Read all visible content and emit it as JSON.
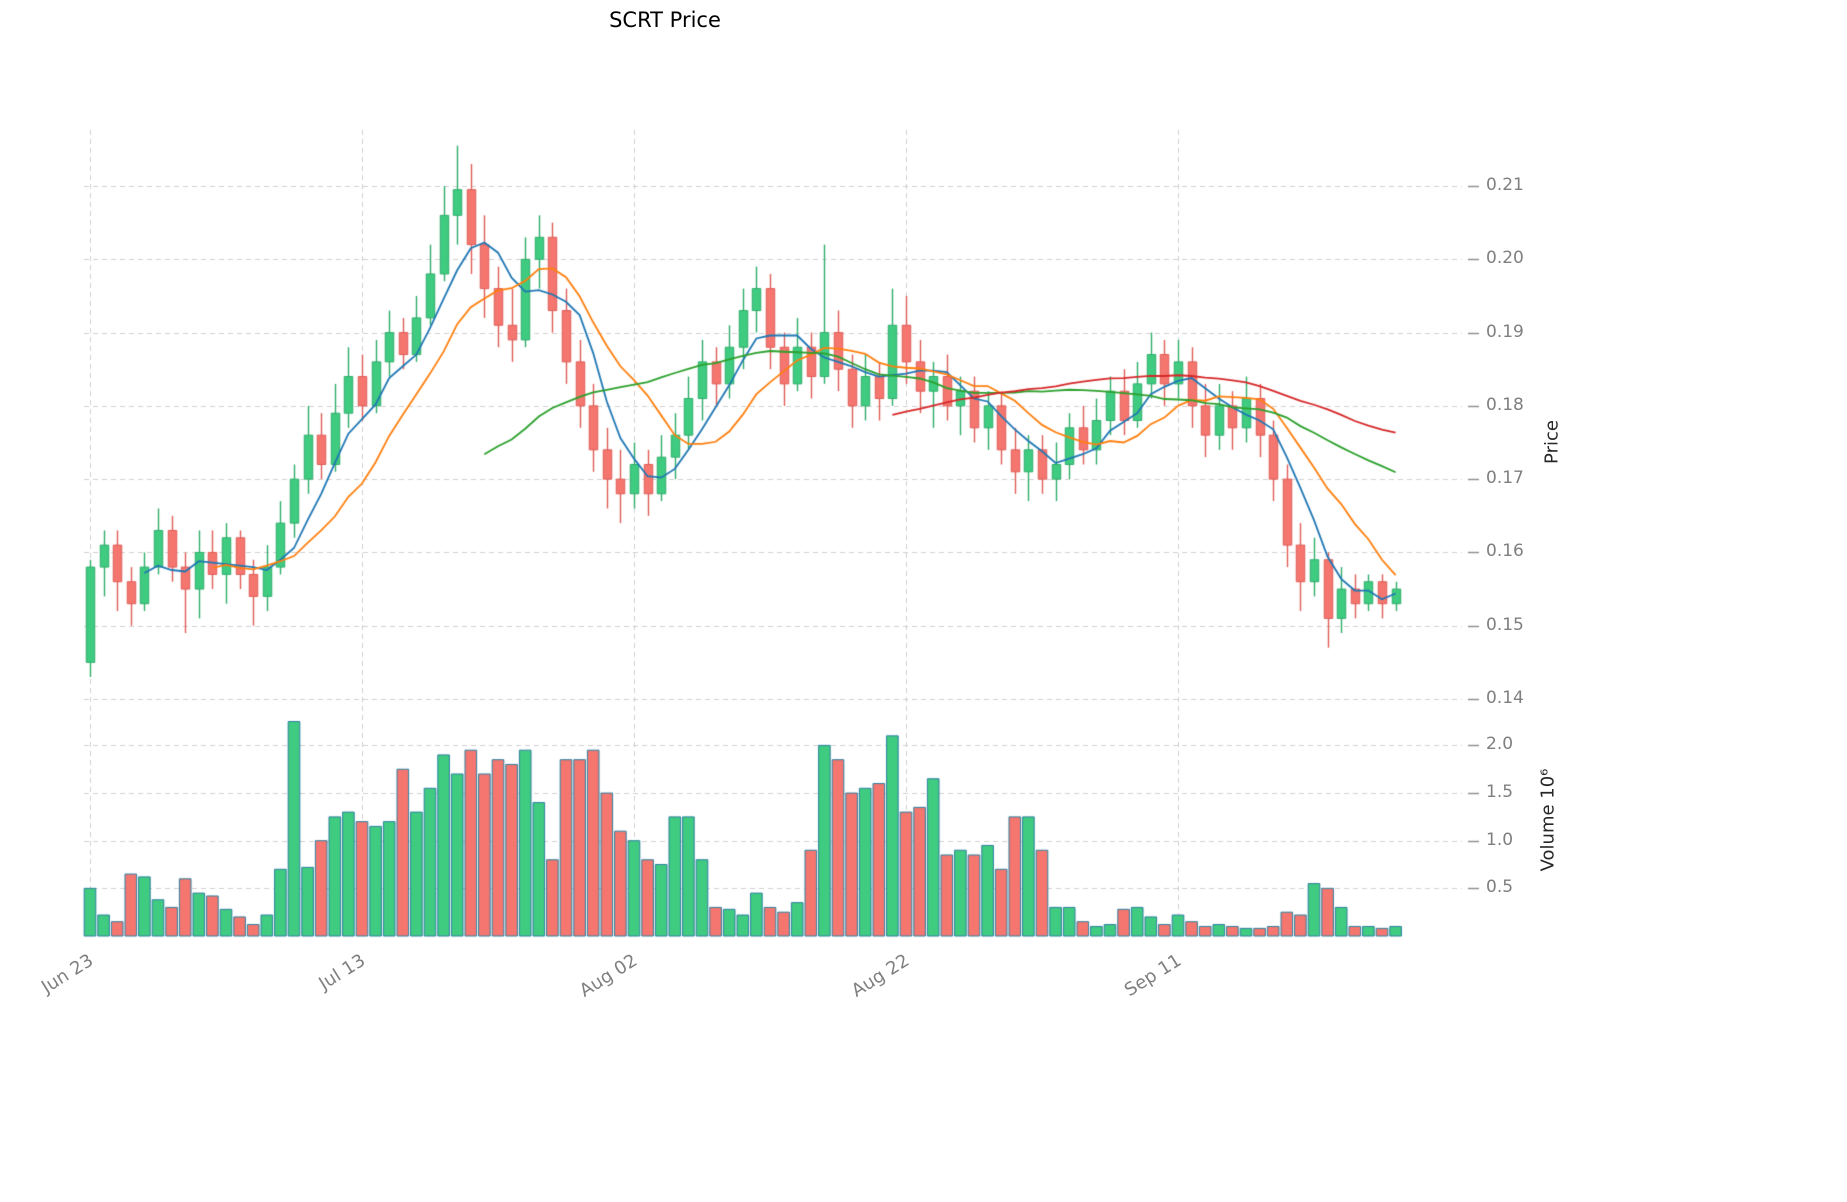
{
  "chart_data": {
    "type": "candlestick",
    "symbol": "SCRT",
    "title": "SCRT Price",
    "ylabel": "Price",
    "ylabel_volume": "Volume  10⁶",
    "grid": "dashed",
    "legend": "none",
    "price_axis_range": [
      0.14,
      0.21
    ],
    "volume_axis_range_millions": [
      0,
      2.25
    ],
    "price_ticks": [
      {
        "v": 0.14,
        "label": "0.14"
      },
      {
        "v": 0.15,
        "label": "0.15"
      },
      {
        "v": 0.16,
        "label": "0.16"
      },
      {
        "v": 0.17,
        "label": "0.17"
      },
      {
        "v": 0.18,
        "label": "0.18"
      },
      {
        "v": 0.19,
        "label": "0.19"
      },
      {
        "v": 0.2,
        "label": "0.20"
      },
      {
        "v": 0.21,
        "label": "0.21"
      }
    ],
    "volume_ticks_millions": [
      {
        "v": 0.5,
        "label": "0.5"
      },
      {
        "v": 1.0,
        "label": "1.0"
      },
      {
        "v": 1.5,
        "label": "1.5"
      },
      {
        "v": 2.0,
        "label": "2.0"
      }
    ],
    "x_tick_labels": [
      {
        "index": 0,
        "label": "Jun 23"
      },
      {
        "index": 20,
        "label": "Jul 13"
      },
      {
        "index": 40,
        "label": "Aug 02"
      },
      {
        "index": 60,
        "label": "Aug 22"
      },
      {
        "index": 80,
        "label": "Sep 11"
      }
    ],
    "moving_averages": [
      {
        "period": 5,
        "color": "#1f77b4"
      },
      {
        "period": 10,
        "color": "#ff7f0e"
      },
      {
        "period": 30,
        "color": "#2ca02c"
      },
      {
        "period": 60,
        "color": "#d62728"
      }
    ],
    "columns": [
      "open",
      "high",
      "low",
      "close",
      "volume_millions"
    ],
    "candles": [
      [
        0.145,
        0.159,
        0.143,
        0.158,
        0.5
      ],
      [
        0.158,
        0.163,
        0.154,
        0.161,
        0.22
      ],
      [
        0.161,
        0.163,
        0.152,
        0.156,
        0.15
      ],
      [
        0.156,
        0.158,
        0.15,
        0.153,
        0.65
      ],
      [
        0.153,
        0.16,
        0.152,
        0.158,
        0.62
      ],
      [
        0.158,
        0.166,
        0.157,
        0.163,
        0.38
      ],
      [
        0.163,
        0.165,
        0.156,
        0.158,
        0.3
      ],
      [
        0.158,
        0.16,
        0.149,
        0.155,
        0.6
      ],
      [
        0.155,
        0.163,
        0.151,
        0.16,
        0.45
      ],
      [
        0.16,
        0.163,
        0.155,
        0.157,
        0.42
      ],
      [
        0.157,
        0.164,
        0.153,
        0.162,
        0.28
      ],
      [
        0.162,
        0.163,
        0.155,
        0.157,
        0.2
      ],
      [
        0.157,
        0.159,
        0.15,
        0.154,
        0.12
      ],
      [
        0.154,
        0.161,
        0.152,
        0.158,
        0.22
      ],
      [
        0.158,
        0.167,
        0.157,
        0.164,
        0.7
      ],
      [
        0.164,
        0.172,
        0.162,
        0.17,
        2.25
      ],
      [
        0.17,
        0.18,
        0.168,
        0.176,
        0.72
      ],
      [
        0.176,
        0.179,
        0.17,
        0.172,
        1.0
      ],
      [
        0.172,
        0.183,
        0.171,
        0.179,
        1.25
      ],
      [
        0.179,
        0.188,
        0.177,
        0.184,
        1.3
      ],
      [
        0.184,
        0.187,
        0.178,
        0.18,
        1.2
      ],
      [
        0.18,
        0.189,
        0.179,
        0.186,
        1.15
      ],
      [
        0.186,
        0.193,
        0.184,
        0.19,
        1.2
      ],
      [
        0.19,
        0.192,
        0.185,
        0.187,
        1.75
      ],
      [
        0.187,
        0.195,
        0.186,
        0.192,
        1.3
      ],
      [
        0.192,
        0.202,
        0.191,
        0.198,
        1.55
      ],
      [
        0.198,
        0.21,
        0.197,
        0.206,
        1.9
      ],
      [
        0.206,
        0.2155,
        0.202,
        0.2095,
        1.7
      ],
      [
        0.2095,
        0.213,
        0.198,
        0.202,
        1.95
      ],
      [
        0.202,
        0.206,
        0.192,
        0.196,
        1.7
      ],
      [
        0.196,
        0.199,
        0.188,
        0.191,
        1.85
      ],
      [
        0.191,
        0.196,
        0.186,
        0.189,
        1.8
      ],
      [
        0.189,
        0.203,
        0.188,
        0.2,
        1.95
      ],
      [
        0.2,
        0.206,
        0.196,
        0.203,
        1.4
      ],
      [
        0.203,
        0.205,
        0.19,
        0.193,
        0.8
      ],
      [
        0.193,
        0.196,
        0.183,
        0.186,
        1.85
      ],
      [
        0.186,
        0.189,
        0.177,
        0.18,
        1.85
      ],
      [
        0.18,
        0.183,
        0.171,
        0.174,
        1.95
      ],
      [
        0.174,
        0.177,
        0.166,
        0.17,
        1.5
      ],
      [
        0.17,
        0.174,
        0.164,
        0.168,
        1.1
      ],
      [
        0.168,
        0.175,
        0.166,
        0.172,
        1.0
      ],
      [
        0.172,
        0.174,
        0.165,
        0.168,
        0.8
      ],
      [
        0.168,
        0.176,
        0.167,
        0.173,
        0.75
      ],
      [
        0.173,
        0.179,
        0.17,
        0.176,
        1.25
      ],
      [
        0.176,
        0.184,
        0.174,
        0.181,
        1.25
      ],
      [
        0.181,
        0.189,
        0.178,
        0.186,
        0.8
      ],
      [
        0.186,
        0.188,
        0.18,
        0.183,
        0.3
      ],
      [
        0.183,
        0.191,
        0.181,
        0.188,
        0.28
      ],
      [
        0.188,
        0.196,
        0.185,
        0.193,
        0.22
      ],
      [
        0.193,
        0.199,
        0.19,
        0.196,
        0.45
      ],
      [
        0.196,
        0.198,
        0.185,
        0.188,
        0.3
      ],
      [
        0.188,
        0.19,
        0.18,
        0.183,
        0.25
      ],
      [
        0.183,
        0.192,
        0.182,
        0.188,
        0.35
      ],
      [
        0.188,
        0.19,
        0.181,
        0.184,
        0.9
      ],
      [
        0.184,
        0.202,
        0.183,
        0.19,
        2.0
      ],
      [
        0.19,
        0.193,
        0.182,
        0.185,
        1.85
      ],
      [
        0.185,
        0.187,
        0.177,
        0.18,
        1.5
      ],
      [
        0.18,
        0.187,
        0.178,
        0.184,
        1.55
      ],
      [
        0.184,
        0.186,
        0.178,
        0.181,
        1.6
      ],
      [
        0.181,
        0.196,
        0.18,
        0.191,
        2.1
      ],
      [
        0.191,
        0.195,
        0.183,
        0.186,
        1.3
      ],
      [
        0.186,
        0.189,
        0.179,
        0.182,
        1.35
      ],
      [
        0.182,
        0.186,
        0.177,
        0.184,
        1.65
      ],
      [
        0.184,
        0.187,
        0.178,
        0.18,
        0.85
      ],
      [
        0.18,
        0.184,
        0.176,
        0.182,
        0.9
      ],
      [
        0.182,
        0.184,
        0.175,
        0.177,
        0.85
      ],
      [
        0.177,
        0.182,
        0.174,
        0.18,
        0.95
      ],
      [
        0.18,
        0.182,
        0.172,
        0.174,
        0.7
      ],
      [
        0.174,
        0.177,
        0.168,
        0.171,
        1.25
      ],
      [
        0.171,
        0.176,
        0.167,
        0.174,
        1.25
      ],
      [
        0.174,
        0.176,
        0.168,
        0.17,
        0.9
      ],
      [
        0.17,
        0.175,
        0.167,
        0.172,
        0.3
      ],
      [
        0.172,
        0.179,
        0.17,
        0.177,
        0.3
      ],
      [
        0.177,
        0.18,
        0.172,
        0.174,
        0.15
      ],
      [
        0.174,
        0.181,
        0.172,
        0.178,
        0.1
      ],
      [
        0.178,
        0.184,
        0.176,
        0.182,
        0.12
      ],
      [
        0.182,
        0.185,
        0.176,
        0.178,
        0.28
      ],
      [
        0.178,
        0.186,
        0.177,
        0.183,
        0.3
      ],
      [
        0.183,
        0.19,
        0.181,
        0.187,
        0.2
      ],
      [
        0.187,
        0.189,
        0.18,
        0.183,
        0.12
      ],
      [
        0.183,
        0.189,
        0.181,
        0.186,
        0.22
      ],
      [
        0.186,
        0.188,
        0.177,
        0.18,
        0.15
      ],
      [
        0.18,
        0.183,
        0.173,
        0.176,
        0.1
      ],
      [
        0.176,
        0.183,
        0.174,
        0.18,
        0.12
      ],
      [
        0.18,
        0.182,
        0.174,
        0.177,
        0.1
      ],
      [
        0.177,
        0.184,
        0.175,
        0.181,
        0.08
      ],
      [
        0.181,
        0.183,
        0.173,
        0.176,
        0.08
      ],
      [
        0.176,
        0.178,
        0.167,
        0.17,
        0.1
      ],
      [
        0.17,
        0.172,
        0.158,
        0.161,
        0.25
      ],
      [
        0.161,
        0.164,
        0.152,
        0.156,
        0.22
      ],
      [
        0.156,
        0.162,
        0.154,
        0.159,
        0.55
      ],
      [
        0.159,
        0.16,
        0.147,
        0.151,
        0.5
      ],
      [
        0.151,
        0.158,
        0.149,
        0.155,
        0.3
      ],
      [
        0.155,
        0.157,
        0.151,
        0.153,
        0.1
      ],
      [
        0.153,
        0.157,
        0.152,
        0.156,
        0.1
      ],
      [
        0.156,
        0.157,
        0.151,
        0.153,
        0.08
      ],
      [
        0.153,
        0.156,
        0.152,
        0.155,
        0.1
      ]
    ]
  },
  "style": {
    "up_color": "#3fcb80",
    "down_color": "#f4766f",
    "up_edge": "#2fae6b",
    "down_edge": "#e05c57",
    "volume_edge": "#2a7f9e",
    "grid_color": "#d0d0d0",
    "tick_color": "#8a8a8a"
  }
}
